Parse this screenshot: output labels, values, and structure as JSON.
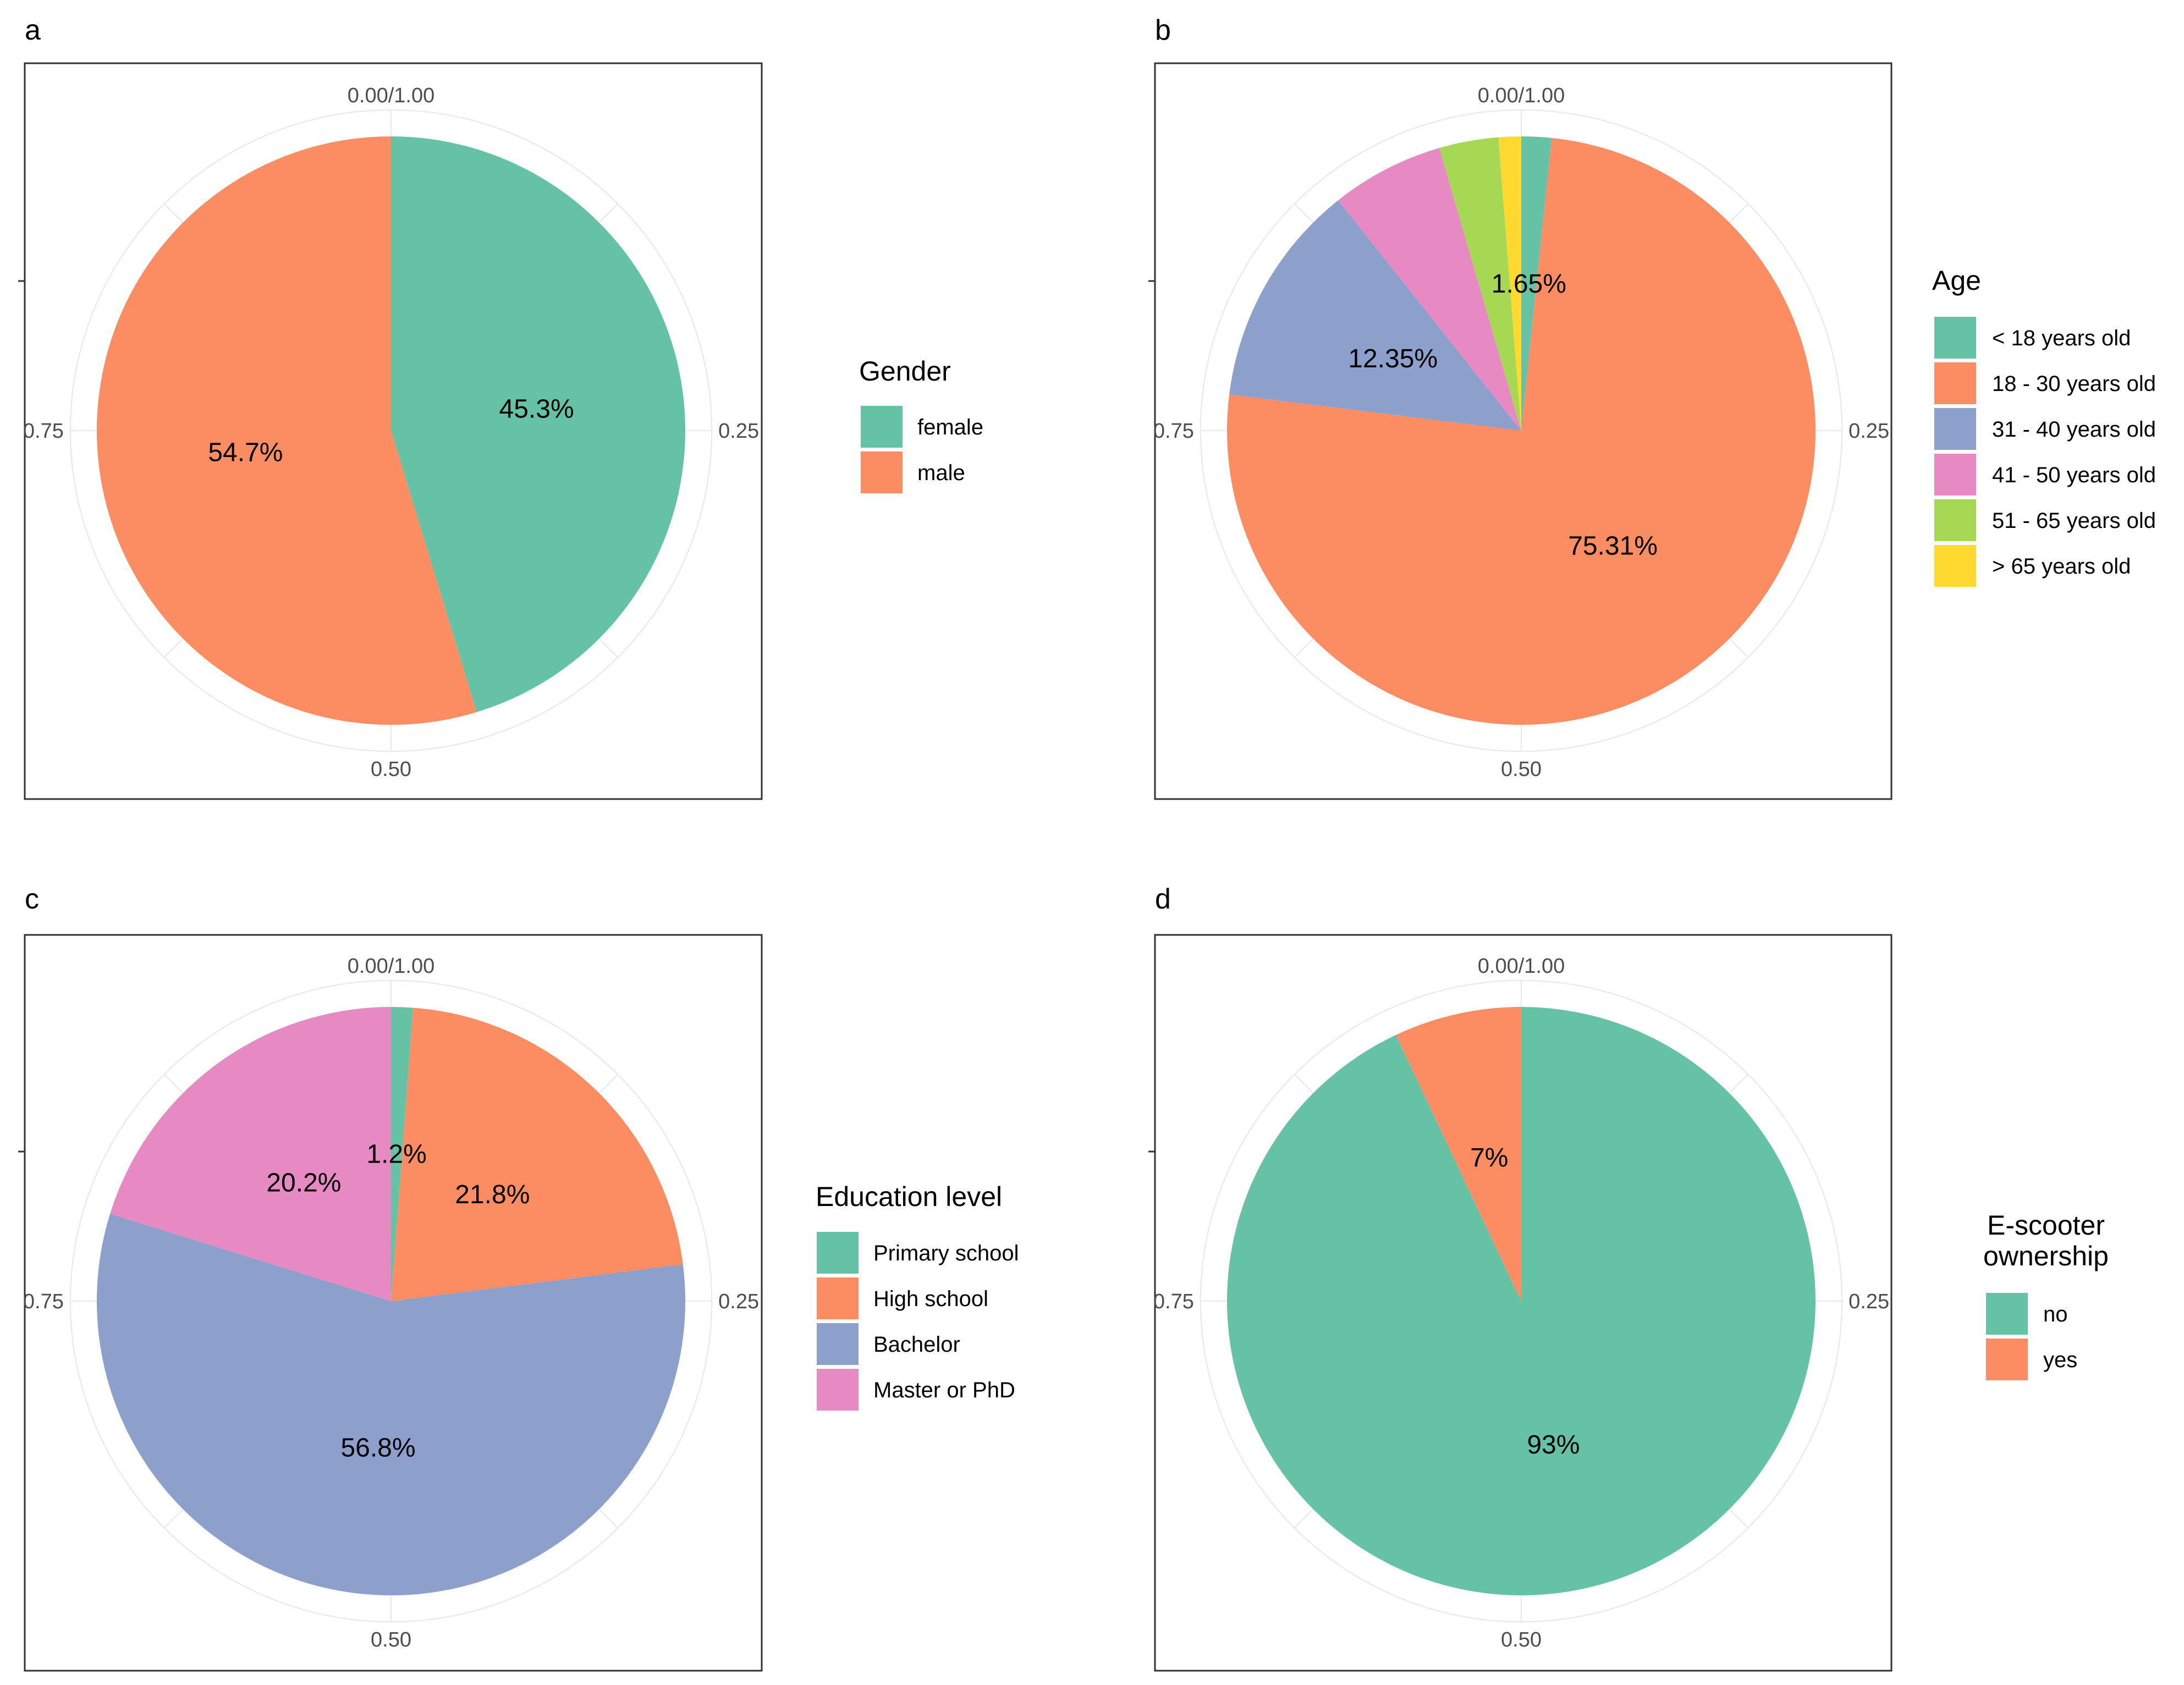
{
  "chart_data": [
    {
      "type": "pie",
      "panel": "a",
      "legend_title": [
        "Gender"
      ],
      "categories": [
        "female",
        "male"
      ],
      "values": [
        45.3,
        54.7
      ],
      "labels": [
        "45.3%",
        "54.7%"
      ],
      "colors": [
        "#66c2a5",
        "#fc8d62"
      ],
      "axis_labels": [
        "0.00/1.00",
        "0.25",
        "0.50",
        "0.75"
      ]
    },
    {
      "type": "pie",
      "panel": "b",
      "legend_title": [
        "Age"
      ],
      "categories": [
        "< 18 years old",
        "18 - 30 years old",
        "31 - 40 years old",
        "41 - 50 years old",
        "51 - 65 years old",
        "> 65 years old"
      ],
      "values": [
        1.65,
        75.31,
        12.35,
        6.2,
        3.25,
        1.24
      ],
      "labels": [
        "1.65%",
        "75.31%",
        "12.35%",
        "",
        "",
        ""
      ],
      "colors": [
        "#66c2a5",
        "#fc8d62",
        "#8da0cb",
        "#e78ac3",
        "#a6d854",
        "#ffd92f"
      ],
      "axis_labels": [
        "0.00/1.00",
        "0.25",
        "0.50",
        "0.75"
      ]
    },
    {
      "type": "pie",
      "panel": "c",
      "legend_title": [
        "Education level"
      ],
      "categories": [
        "Primary school",
        "High school",
        "Bachelor",
        "Master or PhD"
      ],
      "values": [
        1.2,
        21.8,
        56.8,
        20.2
      ],
      "labels": [
        "1.2%",
        "21.8%",
        "56.8%",
        "20.2%"
      ],
      "colors": [
        "#66c2a5",
        "#fc8d62",
        "#8da0cb",
        "#e78ac3"
      ],
      "axis_labels": [
        "0.00/1.00",
        "0.25",
        "0.50",
        "0.75"
      ]
    },
    {
      "type": "pie",
      "panel": "d",
      "legend_title": [
        "E-scooter",
        "ownership"
      ],
      "categories": [
        "no",
        "yes"
      ],
      "values": [
        93,
        7
      ],
      "labels": [
        "93%",
        "7%"
      ],
      "colors": [
        "#66c2a5",
        "#fc8d62"
      ],
      "axis_labels": [
        "0.00/1.00",
        "0.25",
        "0.50",
        "0.75"
      ]
    }
  ]
}
